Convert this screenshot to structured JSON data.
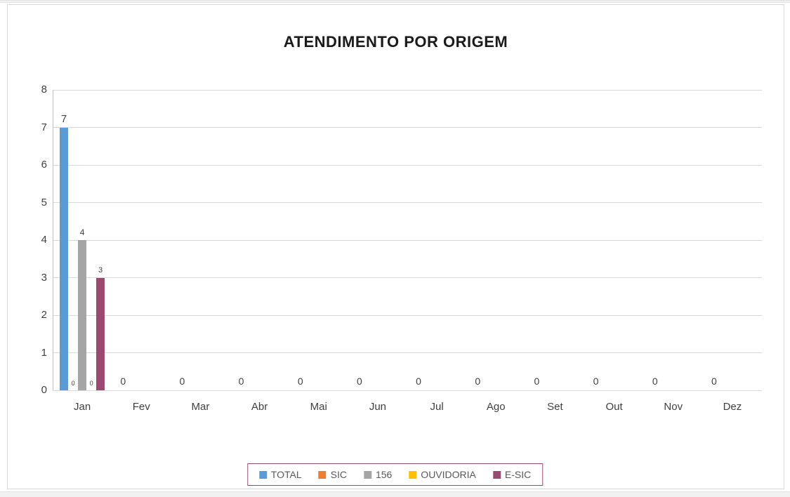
{
  "title": "ATENDIMENTO POR ORIGEM",
  "chart_data": {
    "type": "bar",
    "title": "ATENDIMENTO POR ORIGEM",
    "categories": [
      "Jan",
      "Fev",
      "Mar",
      "Abr",
      "Mai",
      "Jun",
      "Jul",
      "Ago",
      "Set",
      "Out",
      "Nov",
      "Dez"
    ],
    "series": [
      {
        "name": "TOTAL",
        "color": "#5b9bd5",
        "values": [
          7,
          0,
          0,
          0,
          0,
          0,
          0,
          0,
          0,
          0,
          0,
          0
        ]
      },
      {
        "name": "SIC",
        "color": "#ed7d31",
        "values": [
          0,
          0,
          0,
          0,
          0,
          0,
          0,
          0,
          0,
          0,
          0,
          0
        ]
      },
      {
        "name": "156",
        "color": "#a5a5a5",
        "values": [
          4,
          0,
          0,
          0,
          0,
          0,
          0,
          0,
          0,
          0,
          0,
          0
        ]
      },
      {
        "name": "OUVIDORIA",
        "color": "#ffc000",
        "values": [
          0,
          0,
          0,
          0,
          0,
          0,
          0,
          0,
          0,
          0,
          0,
          0
        ]
      },
      {
        "name": "E-SIC",
        "color": "#9a4a70",
        "values": [
          3,
          0,
          0,
          0,
          0,
          0,
          0,
          0,
          0,
          0,
          0,
          0
        ]
      }
    ],
    "ylim": [
      0,
      8
    ],
    "ytick_step": 1,
    "ytick_labels": [
      "0",
      "1",
      "2",
      "3",
      "4",
      "5",
      "6",
      "7",
      "8"
    ],
    "data_labels_visible": true,
    "empty_category_label": "0",
    "grid": true,
    "legend_position": "bottom",
    "xlabel": "",
    "ylabel": ""
  },
  "colors": {
    "gridline": "#d9d9d9",
    "axis_line": "#bfbfbf",
    "axis_text": "#404040",
    "legend_text": "#595959",
    "legend_border": "#9a4a70",
    "title_text": "#1a1a1a",
    "chart_border": "#d9d9d9"
  }
}
